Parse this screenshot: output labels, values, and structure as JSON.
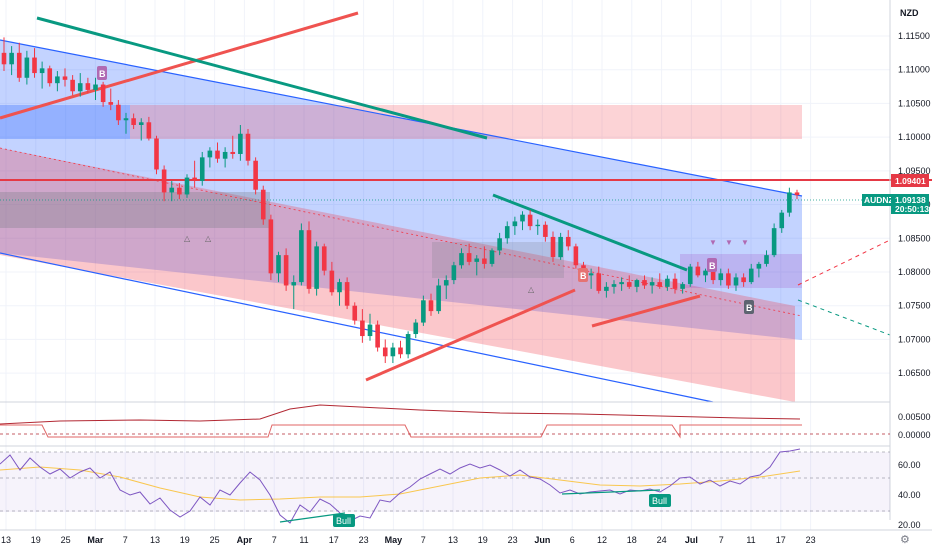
{
  "currency": "NZD",
  "symbol_tag": "AUDNZD",
  "last_price": "1.09138",
  "countdown": "20:50:13",
  "level_tag": "1.09401",
  "price_ticks": [
    "1.11500",
    "1.11000",
    "1.10500",
    "1.10000",
    "1.09500",
    "1.09000",
    "1.08500",
    "1.08000",
    "1.07500",
    "1.07000",
    "1.06500"
  ],
  "indicator_ticks": [
    "0.00500",
    "0.00000"
  ],
  "rsi_ticks": [
    "60.00",
    "40.00",
    "20.00"
  ],
  "time_ticks": [
    "13",
    "19",
    "25",
    "Mar",
    "7",
    "13",
    "19",
    "25",
    "Apr",
    "7",
    "11",
    "17",
    "23",
    "May",
    "7",
    "13",
    "19",
    "23",
    "Jun",
    "6",
    "12",
    "18",
    "24",
    "Jul",
    "7",
    "11",
    "17",
    "23"
  ],
  "signal_labels": {
    "buy": "B",
    "bull": "Bull"
  },
  "colors": {
    "up": "#089981",
    "down": "#f23645",
    "channel_line": "#2962ff",
    "resistance": "#f23645",
    "trend_green": "#089981"
  },
  "chart_data": {
    "type": "candlestick",
    "symbol": "AUDNZD",
    "timeframe_visible": "Feb 13 – Jul 11",
    "y_range": [
      1.0625,
      1.119
    ],
    "last_close": 1.09138,
    "horizontal_level": 1.09401,
    "candles": [
      [
        1.1125,
        1.1148,
        1.1098,
        1.1108
      ],
      [
        1.1108,
        1.1135,
        1.1092,
        1.1125
      ],
      [
        1.1125,
        1.114,
        1.1082,
        1.1088
      ],
      [
        1.1088,
        1.1128,
        1.1078,
        1.1118
      ],
      [
        1.1118,
        1.1132,
        1.1088,
        1.1095
      ],
      [
        1.1095,
        1.1112,
        1.1072,
        1.1102
      ],
      [
        1.1102,
        1.1106,
        1.1075,
        1.108
      ],
      [
        1.108,
        1.1098,
        1.1068,
        1.109
      ],
      [
        1.109,
        1.1102,
        1.1075,
        1.1085
      ],
      [
        1.1085,
        1.1092,
        1.1062,
        1.1068
      ],
      [
        1.1068,
        1.1095,
        1.106,
        1.108
      ],
      [
        1.108,
        1.1088,
        1.1065,
        1.107
      ],
      [
        1.107,
        1.1088,
        1.1055,
        1.1078
      ],
      [
        1.1078,
        1.1082,
        1.1045,
        1.1052
      ],
      [
        1.1052,
        1.1072,
        1.104,
        1.1048
      ],
      [
        1.1048,
        1.1055,
        1.1018,
        1.1025
      ],
      [
        1.1025,
        1.1036,
        1.1005,
        1.1028
      ],
      [
        1.1028,
        1.1035,
        1.1012,
        1.1018
      ],
      [
        1.1018,
        1.1028,
        1.0995,
        1.1022
      ],
      [
        1.1022,
        1.103,
        1.0995,
        1.0998
      ],
      [
        1.0998,
        1.1002,
        1.0945,
        1.0952
      ],
      [
        1.0952,
        1.0958,
        1.0905,
        1.0918
      ],
      [
        1.0918,
        1.0935,
        1.0905,
        1.0925
      ],
      [
        1.0925,
        1.0932,
        1.0908,
        1.0915
      ],
      [
        1.0915,
        1.0945,
        1.091,
        1.094
      ],
      [
        1.094,
        1.0965,
        1.0925,
        1.0935
      ],
      [
        1.0935,
        1.0978,
        1.0928,
        1.097
      ],
      [
        1.097,
        1.0985,
        1.0955,
        1.098
      ],
      [
        1.098,
        1.0992,
        1.0962,
        1.0968
      ],
      [
        1.0968,
        1.0985,
        1.0955,
        1.0978
      ],
      [
        1.0978,
        1.1002,
        1.0968,
        1.0975
      ],
      [
        1.0975,
        1.1018,
        1.0965,
        1.1005
      ],
      [
        1.1005,
        1.1012,
        1.0958,
        1.0965
      ],
      [
        1.0965,
        1.097,
        1.0915,
        1.0922
      ],
      [
        1.0922,
        1.0928,
        1.087,
        1.0878
      ],
      [
        1.0878,
        1.0885,
        1.0788,
        1.0798
      ],
      [
        1.0798,
        1.083,
        1.0785,
        1.0825
      ],
      [
        1.0825,
        1.0835,
        1.0772,
        1.078
      ],
      [
        1.078,
        1.0795,
        1.0745,
        1.0785
      ],
      [
        1.0785,
        1.0872,
        1.078,
        1.0862
      ],
      [
        1.0862,
        1.0875,
        1.0768,
        1.0775
      ],
      [
        1.0775,
        1.0845,
        1.0765,
        1.0838
      ],
      [
        1.0838,
        1.0842,
        1.0795,
        1.0802
      ],
      [
        1.0802,
        1.0815,
        1.0765,
        1.077
      ],
      [
        1.077,
        1.079,
        1.075,
        1.0785
      ],
      [
        1.0785,
        1.0792,
        1.0745,
        1.075
      ],
      [
        1.075,
        1.0755,
        1.0722,
        1.0728
      ],
      [
        1.0728,
        1.0745,
        1.0695,
        1.0705
      ],
      [
        1.0705,
        1.0738,
        1.0698,
        1.0722
      ],
      [
        1.0722,
        1.0728,
        1.0682,
        1.0688
      ],
      [
        1.0688,
        1.07,
        1.0665,
        1.0675
      ],
      [
        1.0675,
        1.0695,
        1.0665,
        1.0688
      ],
      [
        1.0688,
        1.0698,
        1.0672,
        1.0678
      ],
      [
        1.0678,
        1.0712,
        1.0672,
        1.0708
      ],
      [
        1.0708,
        1.073,
        1.0702,
        1.0725
      ],
      [
        1.0725,
        1.0765,
        1.072,
        1.0758
      ],
      [
        1.0758,
        1.0768,
        1.0735,
        1.0742
      ],
      [
        1.0742,
        1.079,
        1.0738,
        1.078
      ],
      [
        1.078,
        1.0795,
        1.076,
        1.0788
      ],
      [
        1.0788,
        1.0815,
        1.0782,
        1.081
      ],
      [
        1.081,
        1.0835,
        1.0805,
        1.0828
      ],
      [
        1.0828,
        1.0842,
        1.081,
        1.0815
      ],
      [
        1.0815,
        1.0825,
        1.0795,
        1.082
      ],
      [
        1.082,
        1.0838,
        1.0805,
        1.0812
      ],
      [
        1.0812,
        1.0835,
        1.0808,
        1.0832
      ],
      [
        1.0832,
        1.0858,
        1.0825,
        1.085
      ],
      [
        1.085,
        1.0875,
        1.0842,
        1.0868
      ],
      [
        1.0868,
        1.0882,
        1.0855,
        1.0875
      ],
      [
        1.0875,
        1.089,
        1.0862,
        1.0885
      ],
      [
        1.0885,
        1.0892,
        1.0862,
        1.0868
      ],
      [
        1.0868,
        1.0878,
        1.0855,
        1.087
      ],
      [
        1.087,
        1.0875,
        1.0845,
        1.0852
      ],
      [
        1.0852,
        1.086,
        1.0815,
        1.0822
      ],
      [
        1.0822,
        1.0858,
        1.0818,
        1.0852
      ],
      [
        1.0852,
        1.0862,
        1.0832,
        1.0838
      ],
      [
        1.0838,
        1.0842,
        1.0805,
        1.081
      ],
      [
        1.081,
        1.0815,
        1.0788,
        1.0795
      ],
      [
        1.0795,
        1.0805,
        1.0775,
        1.0798
      ],
      [
        1.0798,
        1.0808,
        1.0768,
        1.0772
      ],
      [
        1.0772,
        1.0785,
        1.0762,
        1.0778
      ],
      [
        1.0778,
        1.0788,
        1.0768,
        1.0782
      ],
      [
        1.0782,
        1.0792,
        1.0772,
        1.0785
      ],
      [
        1.0785,
        1.0795,
        1.0775,
        1.0778
      ],
      [
        1.0778,
        1.079,
        1.077,
        1.0788
      ],
      [
        1.0788,
        1.0795,
        1.0775,
        1.078
      ],
      [
        1.078,
        1.0792,
        1.0768,
        1.0785
      ],
      [
        1.0785,
        1.0798,
        1.0775,
        1.0778
      ],
      [
        1.0778,
        1.0795,
        1.0772,
        1.079
      ],
      [
        1.079,
        1.0798,
        1.0768,
        1.0775
      ],
      [
        1.0775,
        1.0785,
        1.0768,
        1.0782
      ],
      [
        1.0782,
        1.0812,
        1.0778,
        1.0808
      ],
      [
        1.0808,
        1.0815,
        1.0792,
        1.0795
      ],
      [
        1.0795,
        1.0805,
        1.0785,
        1.0802
      ],
      [
        1.0802,
        1.081,
        1.0782,
        1.0788
      ],
      [
        1.0788,
        1.0805,
        1.078,
        1.0798
      ],
      [
        1.0798,
        1.0805,
        1.0775,
        1.078
      ],
      [
        1.078,
        1.0798,
        1.0772,
        1.0792
      ],
      [
        1.0792,
        1.0798,
        1.0778,
        1.0785
      ],
      [
        1.0785,
        1.0812,
        1.0782,
        1.0805
      ],
      [
        1.0805,
        1.0815,
        1.0792,
        1.0812
      ],
      [
        1.0812,
        1.0832,
        1.0808,
        1.0825
      ],
      [
        1.0825,
        1.0872,
        1.0822,
        1.0865
      ],
      [
        1.0865,
        1.0892,
        1.0858,
        1.0888
      ],
      [
        1.0888,
        1.0925,
        1.0882,
        1.0918
      ],
      [
        1.0918,
        1.0922,
        1.0908,
        1.0914
      ]
    ],
    "annotations": [
      "Bull",
      "B"
    ]
  }
}
